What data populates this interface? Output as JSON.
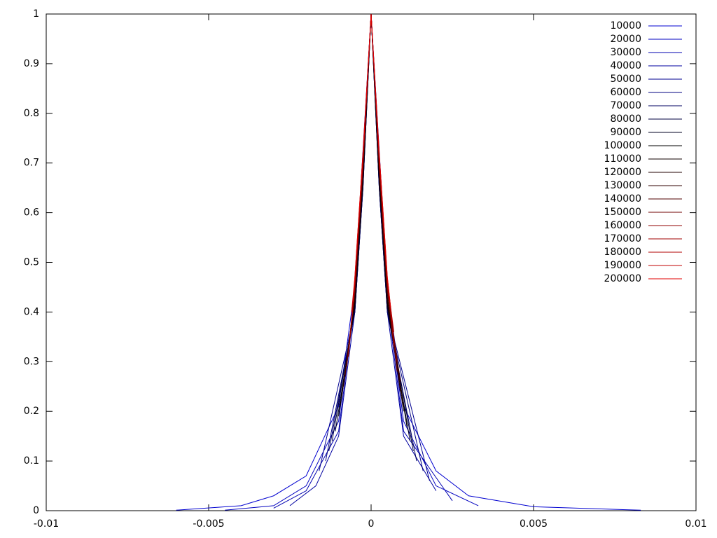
{
  "chart_data": {
    "type": "line",
    "legend": "top right",
    "xlim": [
      -0.01,
      0.01
    ],
    "xticks": [
      -0.01,
      -0.005,
      0,
      0.005,
      0.01
    ],
    "ylim": [
      0,
      1
    ],
    "yticks": [
      0,
      0.1,
      0.2,
      0.3,
      0.4,
      0.5,
      0.6,
      0.7,
      0.8,
      0.9,
      1
    ],
    "series": [
      {
        "name": "10000",
        "color": "#0000d0",
        "x": [
          -0.006,
          -0.004,
          -0.003,
          -0.002,
          -0.001,
          -0.0005,
          0,
          0.0005,
          0.001,
          0.002,
          0.003,
          0.005,
          0.0083
        ],
        "values": [
          0.001,
          0.01,
          0.03,
          0.07,
          0.21,
          0.45,
          1,
          0.45,
          0.21,
          0.08,
          0.03,
          0.008,
          0.001
        ]
      },
      {
        "name": "20000",
        "color": "#0000c0",
        "x": [
          -0.0045,
          -0.003,
          -0.002,
          -0.001,
          -0.0005,
          0,
          0.0005,
          0.001,
          0.002,
          0.0033
        ],
        "values": [
          0.001,
          0.01,
          0.05,
          0.18,
          0.43,
          1,
          0.43,
          0.18,
          0.05,
          0.01
        ]
      },
      {
        "name": "30000",
        "color": "#0000b0",
        "x": [
          -0.003,
          -0.002,
          -0.001,
          -0.0005,
          0,
          0.0005,
          0.001,
          0.0025
        ],
        "values": [
          0.005,
          0.04,
          0.16,
          0.42,
          1,
          0.42,
          0.16,
          0.02
        ]
      },
      {
        "name": "40000",
        "color": "#0000a0",
        "x": [
          -0.0025,
          -0.0017,
          -0.001,
          -0.0005,
          0,
          0.0005,
          0.001,
          0.002
        ],
        "values": [
          0.01,
          0.05,
          0.15,
          0.4,
          1,
          0.4,
          0.15,
          0.04
        ]
      },
      {
        "name": "50000",
        "color": "#000090",
        "x": [
          -0.0016,
          -0.0005,
          -0.00025,
          0,
          0.00025,
          0.0005,
          0.0018
        ],
        "values": [
          0.08,
          0.4,
          0.65,
          1,
          0.65,
          0.4,
          0.06
        ]
      },
      {
        "name": "60000",
        "color": "#000080",
        "x": [
          -0.0014,
          -0.0005,
          -0.00025,
          0,
          0.00025,
          0.0005,
          0.0016
        ],
        "values": [
          0.1,
          0.4,
          0.65,
          1,
          0.65,
          0.4,
          0.08
        ]
      },
      {
        "name": "70000",
        "color": "#000060",
        "x": [
          -0.0013,
          -0.0005,
          -0.00025,
          0,
          0.00025,
          0.0005,
          0.0014
        ],
        "values": [
          0.12,
          0.4,
          0.65,
          1,
          0.65,
          0.4,
          0.1
        ]
      },
      {
        "name": "80000",
        "color": "#000040",
        "x": [
          -0.0012,
          -0.0005,
          -0.00025,
          0,
          0.00025,
          0.0005,
          0.0013
        ],
        "values": [
          0.14,
          0.41,
          0.66,
          1,
          0.66,
          0.41,
          0.12
        ]
      },
      {
        "name": "90000",
        "color": "#000020",
        "x": [
          -0.0011,
          -0.0005,
          -0.00025,
          0,
          0.00025,
          0.0005,
          0.0012
        ],
        "values": [
          0.16,
          0.41,
          0.66,
          1,
          0.66,
          0.41,
          0.14
        ]
      },
      {
        "name": "100000",
        "color": "#000000",
        "x": [
          -0.001,
          -0.0005,
          -0.00025,
          0,
          0.00025,
          0.0005,
          0.0011
        ],
        "values": [
          0.19,
          0.42,
          0.67,
          1,
          0.67,
          0.42,
          0.17
        ]
      },
      {
        "name": "110000",
        "color": "#100000",
        "x": [
          -0.00095,
          -0.0005,
          -0.00025,
          0,
          0.00025,
          0.0005,
          0.001
        ],
        "values": [
          0.21,
          0.42,
          0.67,
          1,
          0.67,
          0.42,
          0.2
        ]
      },
      {
        "name": "120000",
        "color": "#200000",
        "x": [
          -0.0009,
          -0.0005,
          -0.00025,
          0,
          0.00025,
          0.0005,
          0.001
        ],
        "values": [
          0.23,
          0.43,
          0.68,
          1,
          0.68,
          0.43,
          0.21
        ]
      },
      {
        "name": "130000",
        "color": "#300000",
        "x": [
          -0.00085,
          -0.0005,
          -0.00025,
          0,
          0.00025,
          0.0005,
          0.0009
        ],
        "values": [
          0.25,
          0.43,
          0.68,
          1,
          0.68,
          0.43,
          0.24
        ]
      },
      {
        "name": "140000",
        "color": "#500000",
        "x": [
          -0.0008,
          -0.0005,
          -0.00025,
          0,
          0.00025,
          0.0005,
          0.0009
        ],
        "values": [
          0.27,
          0.44,
          0.69,
          1,
          0.69,
          0.44,
          0.26
        ]
      },
      {
        "name": "150000",
        "color": "#700000",
        "x": [
          -0.00075,
          -0.0005,
          -0.00025,
          0,
          0.00025,
          0.0005,
          0.0008
        ],
        "values": [
          0.29,
          0.45,
          0.7,
          1,
          0.7,
          0.45,
          0.28
        ]
      },
      {
        "name": "160000",
        "color": "#900000",
        "x": [
          -0.0007,
          -0.0005,
          -0.00025,
          0,
          0.00025,
          0.0005,
          0.0008
        ],
        "values": [
          0.31,
          0.45,
          0.7,
          1,
          0.7,
          0.45,
          0.3
        ]
      },
      {
        "name": "170000",
        "color": "#a00000",
        "x": [
          -0.00065,
          -0.0005,
          -0.00025,
          0,
          0.00025,
          0.0005,
          0.0007
        ],
        "values": [
          0.35,
          0.46,
          0.71,
          1,
          0.71,
          0.46,
          0.33
        ]
      },
      {
        "name": "180000",
        "color": "#b00000",
        "x": [
          -0.0006,
          -0.0005,
          -0.00025,
          0,
          0.00025,
          0.0005,
          0.0007
        ],
        "values": [
          0.38,
          0.46,
          0.71,
          1,
          0.71,
          0.46,
          0.36
        ]
      },
      {
        "name": "190000",
        "color": "#c00000",
        "x": [
          -0.0006,
          -0.0005,
          -0.00025,
          0,
          0.00025,
          0.0005,
          0.00065
        ],
        "values": [
          0.4,
          0.47,
          0.72,
          1,
          0.72,
          0.47,
          0.38
        ]
      },
      {
        "name": "200000",
        "color": "#e00000",
        "x": [
          -0.00055,
          -0.0005,
          -0.00025,
          0,
          0.00025,
          0.0005,
          0.0006
        ],
        "values": [
          0.42,
          0.47,
          0.72,
          1,
          0.72,
          0.47,
          0.41
        ]
      }
    ]
  }
}
